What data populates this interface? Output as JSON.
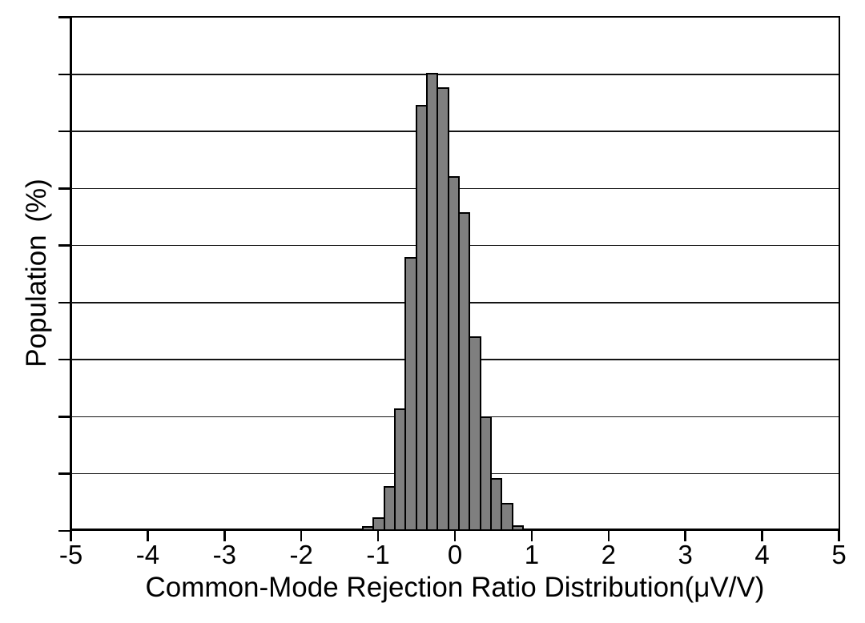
{
  "figure": {
    "background_color": "#ffffff",
    "axis_color": "#000000",
    "gridline_color": "#141414",
    "bar_fill_color": "#7f7f7f",
    "bar_border_color": "#000000"
  },
  "chart_data": {
    "type": "bar",
    "subtype": "histogram",
    "title": "",
    "xlabel": "Common-Mode Rejection Ratio Distribution(μV/V)",
    "ylabel": "Population (%)",
    "xlim": [
      -5,
      5
    ],
    "ylim": [
      0,
      18
    ],
    "grid": "horizontal",
    "legend": "none",
    "x_ticks": [
      -5,
      -4,
      -3,
      -2,
      -1,
      0,
      1,
      2,
      3,
      4,
      5
    ],
    "x_tick_labels": [
      "-5",
      "-4",
      "-3",
      "-2",
      "-1",
      "0",
      "1",
      "2",
      "3",
      "4",
      "5"
    ],
    "y_tick_step": 2,
    "y_tick_labels_shown": false,
    "bin_start": -1.2,
    "bin_width": 0.139,
    "bin_count": 15,
    "bin_edges": [
      -1.2,
      -1.061,
      -0.922,
      -0.783,
      -0.644,
      -0.505,
      -0.366,
      -0.227,
      -0.088,
      0.051,
      0.19,
      0.329,
      0.468,
      0.607,
      0.746,
      0.885
    ],
    "values": [
      0.18,
      0.48,
      1.58,
      4.28,
      9.6,
      14.93,
      16.05,
      15.54,
      12.42,
      11.17,
      6.82,
      4.02,
      1.86,
      0.97,
      0.2
    ],
    "values_unit": "percent_of_population"
  }
}
